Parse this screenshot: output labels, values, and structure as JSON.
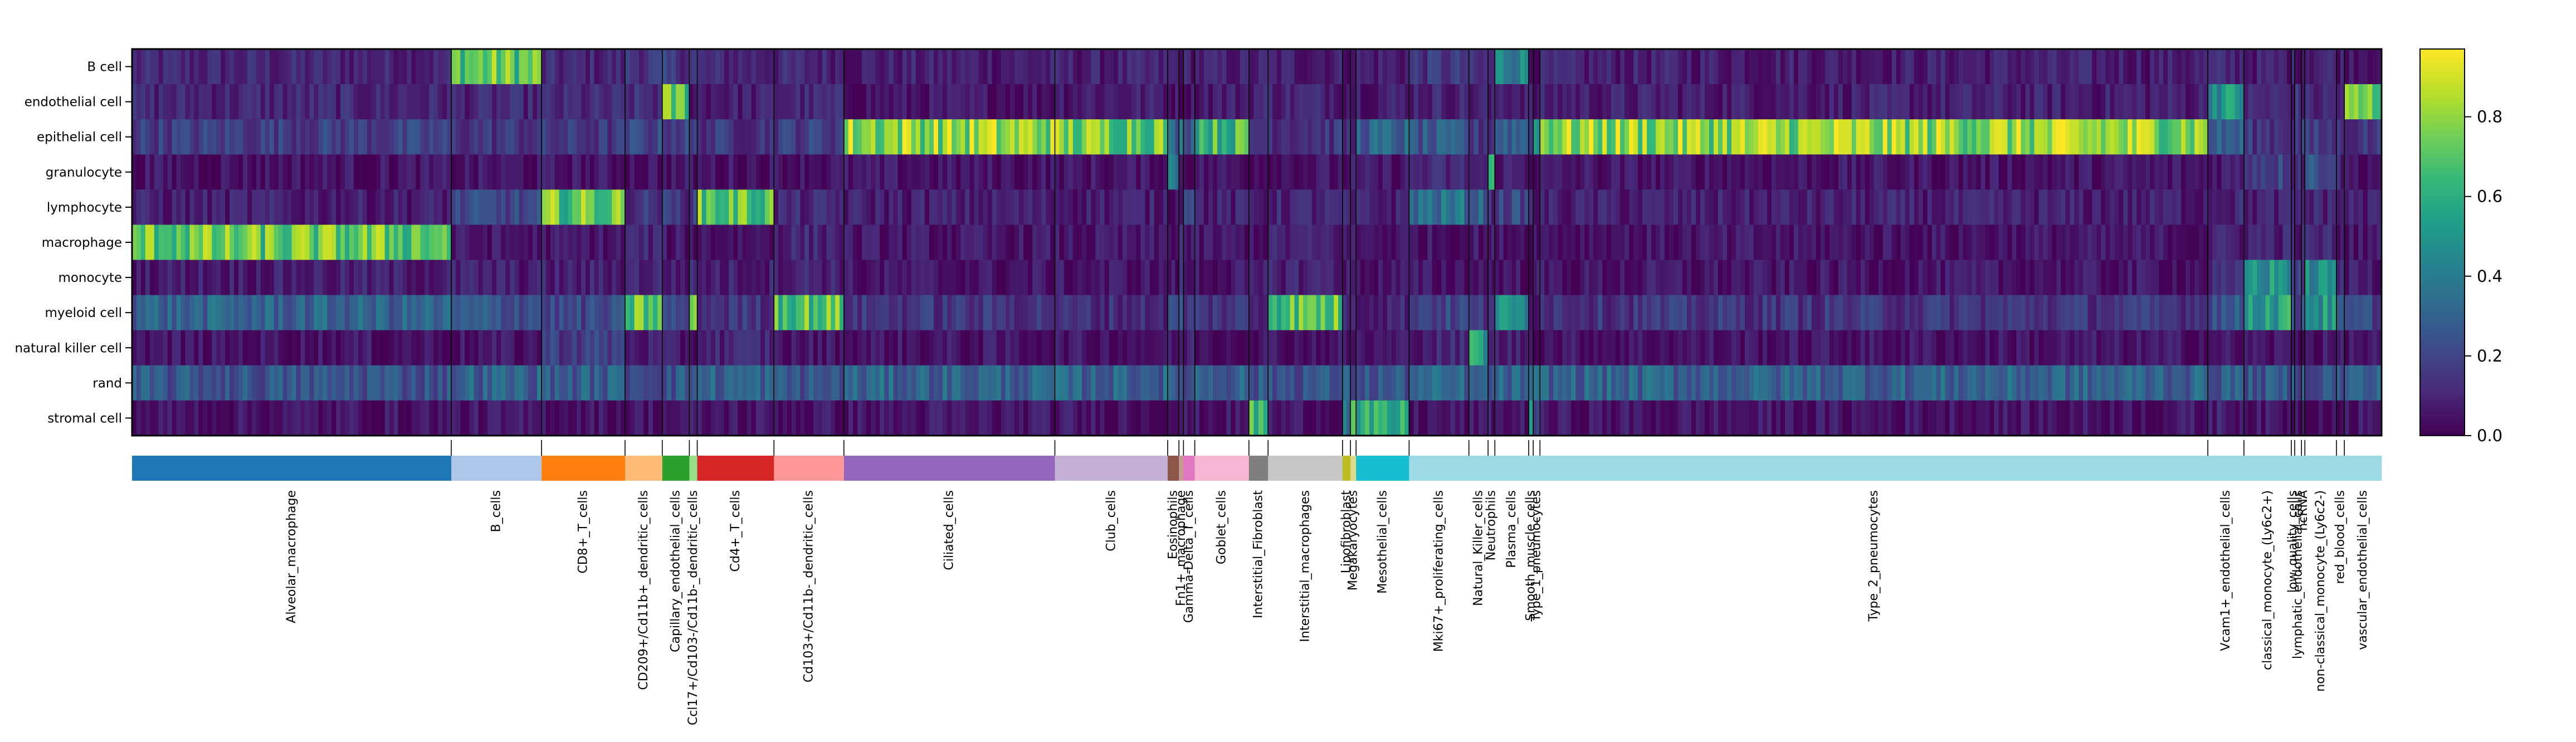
{
  "chart_data": {
    "type": "heatmap",
    "title": "",
    "xlabel": "",
    "ylabel": "",
    "rows": [
      "B cell",
      "endothelial cell",
      "epithelial cell",
      "granulocyte",
      "lymphocyte",
      "macrophage",
      "monocyte",
      "myeloid cell",
      "natural killer cell",
      "rand",
      "stromal cell"
    ],
    "groups": [
      {
        "label": "Alveolar_macrophage",
        "fraction": 0.1415,
        "color": "#1f77b4"
      },
      {
        "label": "B_cells",
        "fraction": 0.04,
        "color": "#aec7e8"
      },
      {
        "label": "CD8+_T_cells",
        "fraction": 0.037,
        "color": "#ff7f0e"
      },
      {
        "label": "CD209+/Cd11b+_dendritic_cells",
        "fraction": 0.0165,
        "color": "#ffbb78"
      },
      {
        "label": "Capillary_endothelial_cells",
        "fraction": 0.012,
        "color": "#2ca02c"
      },
      {
        "label": "Ccl17+/Cd103-/Cd11b-_dendritic_cells",
        "fraction": 0.0035,
        "color": "#98df8a"
      },
      {
        "label": "Cd4+_T_cells",
        "fraction": 0.034,
        "color": "#d62728"
      },
      {
        "label": "Cd103+/Cd11b-_dendritic_cells",
        "fraction": 0.031,
        "color": "#ff9896"
      },
      {
        "label": "Ciliated_cells",
        "fraction": 0.0935,
        "color": "#9467bd"
      },
      {
        "label": "Club_cells",
        "fraction": 0.05,
        "color": "#c5b0d5"
      },
      {
        "label": "Eosinophils",
        "fraction": 0.005,
        "color": "#8c564b"
      },
      {
        "label": "Fn1+_macrophage",
        "fraction": 0.002,
        "color": "#c49c94"
      },
      {
        "label": "Gamma-Delta_T_cells",
        "fraction": 0.005,
        "color": "#e377c2"
      },
      {
        "label": "Goblet_cells",
        "fraction": 0.024,
        "color": "#f7b6d2"
      },
      {
        "label": "Interstitial_Fibroblast",
        "fraction": 0.0085,
        "color": "#7f7f7f"
      },
      {
        "label": "Interstitial_macrophages",
        "fraction": 0.033,
        "color": "#c7c7c7"
      },
      {
        "label": "Lipofibroblast",
        "fraction": 0.0035,
        "color": "#bcbd22"
      },
      {
        "label": "Megakaryocytes",
        "fraction": 0.0025,
        "color": "#dbdb8d"
      },
      {
        "label": "Mesothelial_cells",
        "fraction": 0.0235,
        "color": "#17becf"
      },
      {
        "label": "Mki67+_proliferating_cells",
        "fraction": 0.0265,
        "color": "#9edae5"
      },
      {
        "label": "Natural_Killer_cells",
        "fraction": 0.0085,
        "color": "#9edae5"
      },
      {
        "label": "Neutrophils",
        "fraction": 0.003,
        "color": "#9edae5"
      },
      {
        "label": "Plasma_cells",
        "fraction": 0.015,
        "color": "#9edae5"
      },
      {
        "label": "Smooth_muscle_cells",
        "fraction": 0.002,
        "color": "#9edae5"
      },
      {
        "label": "Type_1_pneumocytes",
        "fraction": 0.003,
        "color": "#9edae5"
      },
      {
        "label": "Type_2_pneumocytes",
        "fraction": 0.296,
        "color": "#9edae5"
      },
      {
        "label": "Vcam1+_endothelial_cells",
        "fraction": 0.016,
        "color": "#9edae5"
      },
      {
        "label": "classical_monocyte_(Ly6c2+)",
        "fraction": 0.021,
        "color": "#9edae5"
      },
      {
        "label": "low_quality_cells",
        "fraction": 0.0015,
        "color": "#9edae5"
      },
      {
        "label": "lymphatic_endothelial_cells",
        "fraction": 0.003,
        "color": "#9edae5"
      },
      {
        "label": "ncRNA",
        "fraction": 0.0015,
        "color": "#9edae5"
      },
      {
        "label": "non-classical_monocyte_(Ly6c2-)",
        "fraction": 0.014,
        "color": "#9edae5"
      },
      {
        "label": "red_blood_cells",
        "fraction": 0.0035,
        "color": "#9edae5"
      },
      {
        "label": "vascular_endothelial_cells",
        "fraction": 0.0165,
        "color": "#9edae5"
      }
    ],
    "values": [
      [
        0.1,
        0.72,
        0.1,
        0.15,
        0.15,
        0.15,
        0.1,
        0.1,
        0.08,
        0.08,
        0.08,
        0.08,
        0.08,
        0.08,
        0.08,
        0.08,
        0.08,
        0.08,
        0.08,
        0.15,
        0.1,
        0.1,
        0.45,
        0.05,
        0.05,
        0.08,
        0.1,
        0.08,
        0.08,
        0.08,
        0.08,
        0.1,
        0.08,
        0.08
      ],
      [
        0.1,
        0.1,
        0.1,
        0.12,
        0.7,
        0.05,
        0.08,
        0.1,
        0.05,
        0.08,
        0.05,
        0.05,
        0.05,
        0.08,
        0.1,
        0.1,
        0.08,
        0.08,
        0.08,
        0.1,
        0.08,
        0.05,
        0.1,
        0.05,
        0.05,
        0.08,
        0.5,
        0.1,
        0.1,
        0.15,
        0.1,
        0.1,
        0.1,
        0.72
      ],
      [
        0.18,
        0.15,
        0.15,
        0.2,
        0.2,
        0.15,
        0.15,
        0.18,
        0.8,
        0.75,
        0.3,
        0.35,
        0.3,
        0.65,
        0.15,
        0.15,
        0.12,
        0.1,
        0.3,
        0.25,
        0.15,
        0.15,
        0.3,
        0.25,
        0.5,
        0.8,
        0.28,
        0.15,
        0.15,
        0.15,
        0.2,
        0.15,
        0.12,
        0.15
      ],
      [
        0.05,
        0.05,
        0.05,
        0.05,
        0.05,
        0.05,
        0.05,
        0.05,
        0.05,
        0.05,
        0.4,
        0.05,
        0.05,
        0.05,
        0.05,
        0.05,
        0.05,
        0.05,
        0.05,
        0.1,
        0.08,
        0.55,
        0.08,
        0.05,
        0.05,
        0.05,
        0.08,
        0.2,
        0.12,
        0.15,
        0.12,
        0.25,
        0.1,
        0.05
      ],
      [
        0.08,
        0.2,
        0.72,
        0.15,
        0.15,
        0.2,
        0.7,
        0.1,
        0.08,
        0.08,
        0.05,
        0.1,
        0.3,
        0.08,
        0.08,
        0.1,
        0.08,
        0.08,
        0.08,
        0.35,
        0.3,
        0.1,
        0.2,
        0.08,
        0.05,
        0.08,
        0.1,
        0.08,
        0.08,
        0.1,
        0.08,
        0.1,
        0.08,
        0.08
      ],
      [
        0.72,
        0.05,
        0.05,
        0.1,
        0.05,
        0.05,
        0.05,
        0.1,
        0.05,
        0.05,
        0.05,
        0.15,
        0.05,
        0.05,
        0.05,
        0.08,
        0.05,
        0.05,
        0.05,
        0.05,
        0.05,
        0.05,
        0.05,
        0.05,
        0.05,
        0.05,
        0.08,
        0.1,
        0.08,
        0.08,
        0.08,
        0.1,
        0.05,
        0.05
      ],
      [
        0.08,
        0.08,
        0.08,
        0.1,
        0.08,
        0.1,
        0.08,
        0.1,
        0.05,
        0.05,
        0.05,
        0.1,
        0.05,
        0.05,
        0.05,
        0.1,
        0.05,
        0.05,
        0.05,
        0.05,
        0.05,
        0.05,
        0.05,
        0.05,
        0.05,
        0.05,
        0.1,
        0.5,
        0.2,
        0.15,
        0.2,
        0.45,
        0.1,
        0.08
      ],
      [
        0.3,
        0.25,
        0.2,
        0.7,
        0.2,
        0.65,
        0.15,
        0.7,
        0.15,
        0.12,
        0.2,
        0.25,
        0.15,
        0.15,
        0.1,
        0.7,
        0.1,
        0.15,
        0.1,
        0.2,
        0.15,
        0.2,
        0.45,
        0.1,
        0.1,
        0.15,
        0.25,
        0.55,
        0.3,
        0.2,
        0.3,
        0.5,
        0.2,
        0.2
      ],
      [
        0.05,
        0.05,
        0.18,
        0.08,
        0.05,
        0.05,
        0.1,
        0.05,
        0.05,
        0.05,
        0.05,
        0.05,
        0.08,
        0.05,
        0.05,
        0.05,
        0.05,
        0.05,
        0.05,
        0.1,
        0.55,
        0.05,
        0.08,
        0.05,
        0.05,
        0.05,
        0.05,
        0.05,
        0.05,
        0.05,
        0.05,
        0.05,
        0.05,
        0.05
      ],
      [
        0.25,
        0.3,
        0.28,
        0.25,
        0.25,
        0.3,
        0.3,
        0.25,
        0.3,
        0.3,
        0.25,
        0.25,
        0.25,
        0.3,
        0.25,
        0.25,
        0.25,
        0.25,
        0.25,
        0.3,
        0.25,
        0.25,
        0.3,
        0.25,
        0.3,
        0.3,
        0.28,
        0.25,
        0.25,
        0.25,
        0.25,
        0.25,
        0.25,
        0.28
      ],
      [
        0.05,
        0.05,
        0.05,
        0.05,
        0.05,
        0.05,
        0.05,
        0.05,
        0.05,
        0.05,
        0.05,
        0.05,
        0.05,
        0.05,
        0.65,
        0.05,
        0.4,
        0.6,
        0.55,
        0.05,
        0.05,
        0.05,
        0.05,
        0.55,
        0.2,
        0.05,
        0.08,
        0.05,
        0.05,
        0.05,
        0.05,
        0.05,
        0.05,
        0.05
      ]
    ],
    "colorbar": {
      "colormap": "viridis",
      "vmin": 0.0,
      "vmax": 0.97,
      "ticks": [
        "0.0",
        "0.2",
        "0.4",
        "0.6",
        "0.8"
      ],
      "tick_values": [
        0.0,
        0.2,
        0.4,
        0.6,
        0.8
      ]
    }
  }
}
